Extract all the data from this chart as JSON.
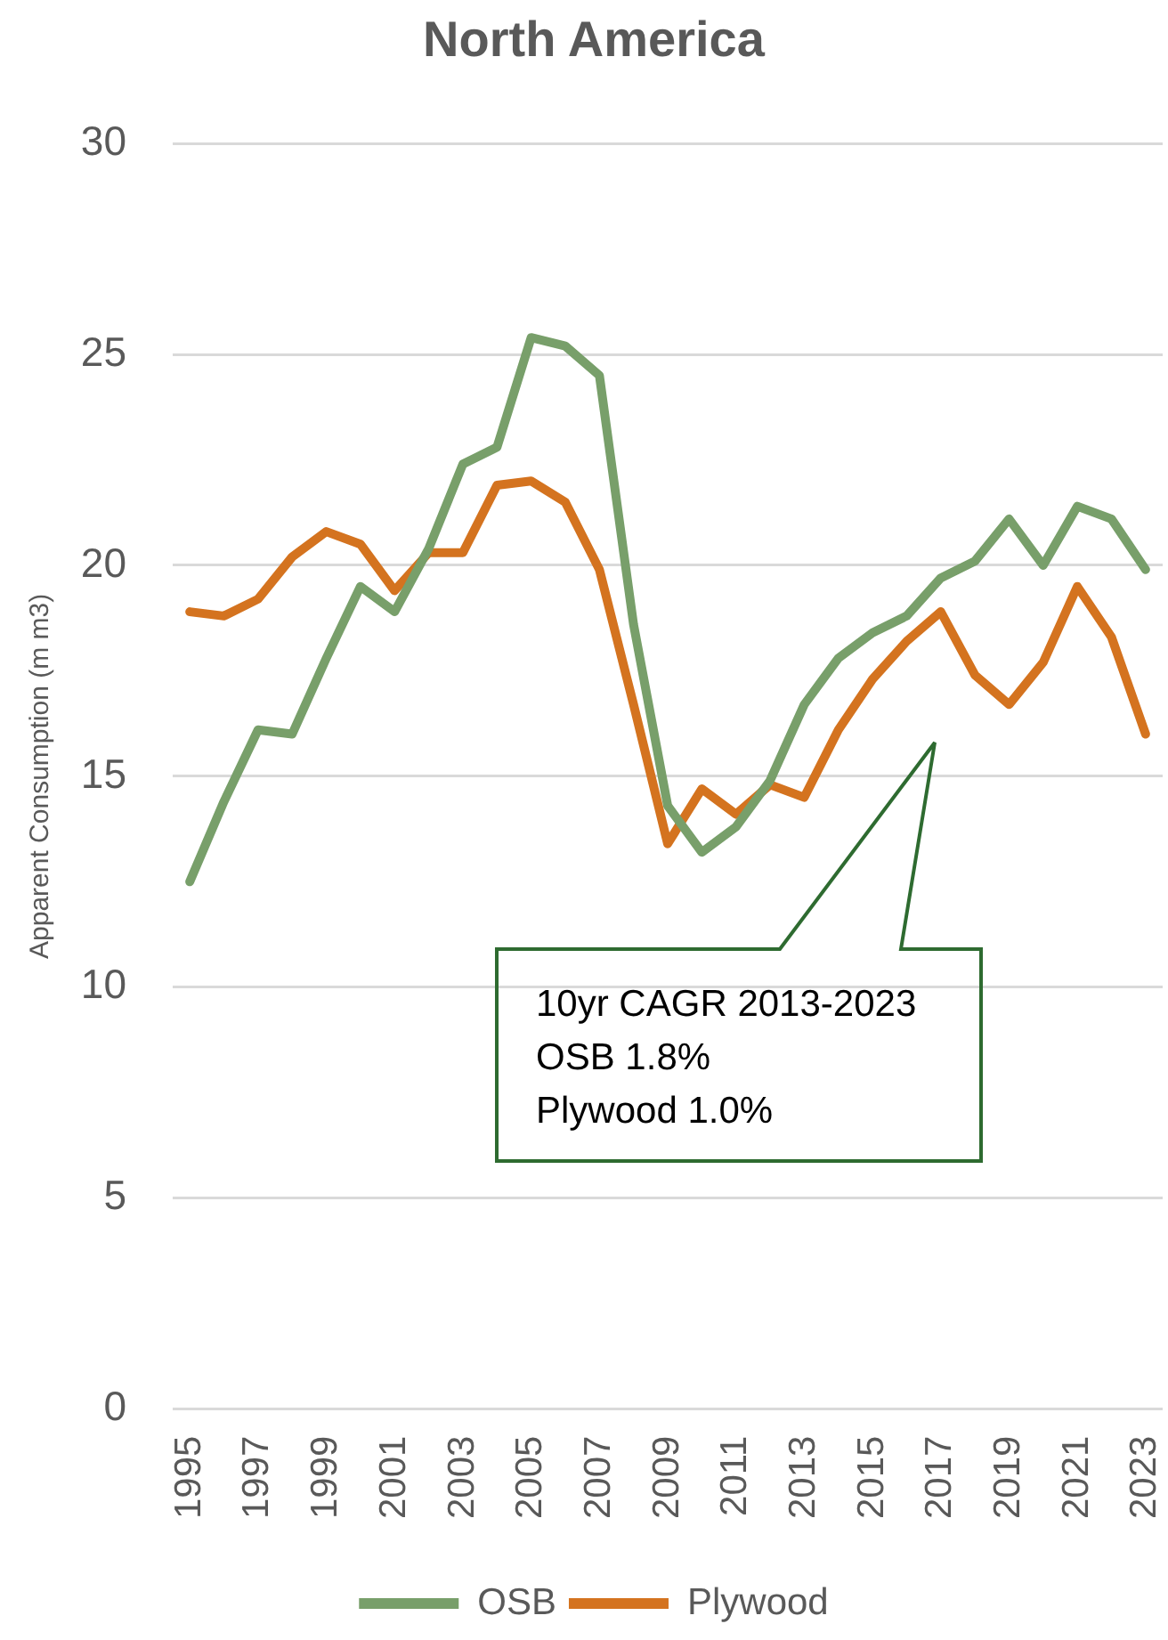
{
  "chart_data": {
    "type": "line",
    "title": "North America",
    "ylabel": "Apparent Consumption (m m3)",
    "categories": [
      "1995",
      null,
      "1997",
      null,
      "1999",
      null,
      "2001",
      null,
      "2003",
      null,
      "2005",
      null,
      "2007",
      null,
      "2009",
      null,
      "2011",
      null,
      "2013",
      null,
      "2015",
      null,
      "2017",
      null,
      "2019",
      null,
      "2021",
      null,
      "2023"
    ],
    "series": [
      {
        "name": "OSB",
        "color": "#789f6a",
        "values": [
          12.5,
          14.4,
          16.1,
          16.0,
          17.8,
          19.5,
          18.9,
          20.4,
          22.4,
          22.8,
          25.4,
          25.2,
          24.5,
          18.6,
          14.3,
          13.2,
          13.8,
          14.9,
          16.7,
          17.8,
          18.4,
          18.8,
          19.7,
          20.1,
          21.1,
          20.0,
          21.4,
          21.1,
          19.9
        ]
      },
      {
        "name": "Plywood",
        "color": "#d4731f",
        "values": [
          18.9,
          18.8,
          19.2,
          20.2,
          20.8,
          20.5,
          19.4,
          20.3,
          20.3,
          21.9,
          22.0,
          21.5,
          19.9,
          16.7,
          13.4,
          14.7,
          14.1,
          14.8,
          14.5,
          16.1,
          17.3,
          18.2,
          18.9,
          17.4,
          16.7,
          17.7,
          19.5,
          18.3,
          16.0
        ]
      }
    ],
    "ylim": [
      0,
      30
    ],
    "yticks": [
      0,
      5,
      10,
      15,
      20,
      25,
      30
    ],
    "grid": "y",
    "legend": "bottom",
    "marker": "none",
    "line_style": "solid",
    "annotations": [
      "10yr CAGR 2013-2023\nOSB 1.8%\nPlywood 1.0%"
    ]
  }
}
